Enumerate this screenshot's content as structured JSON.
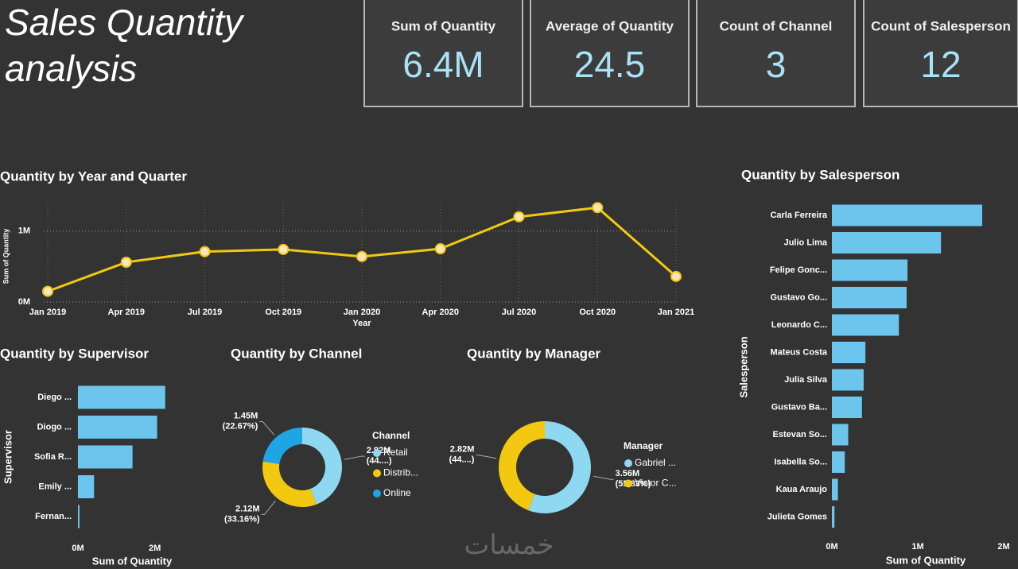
{
  "title": [
    "Sales Quantity",
    "analysis"
  ],
  "cards": [
    {
      "label": "Sum of Quantity",
      "value": "6.4M"
    },
    {
      "label": "Average of Quantity",
      "value": "24.5"
    },
    {
      "label": "Count of Channel",
      "value": "3"
    },
    {
      "label": "Count of Salesperson",
      "value": "12"
    }
  ],
  "chart_data": [
    {
      "type": "line",
      "title": "Quantity by Year and Quarter",
      "x_label": "Year",
      "y_label": "Sum of Quantity",
      "categories": [
        "Jan 2019",
        "Apr 2019",
        "Jul 2019",
        "Oct 2019",
        "Jan 2020",
        "Apr 2020",
        "Jul 2020",
        "Oct 2020",
        "Jan 2021"
      ],
      "values": [
        150000,
        560000,
        710000,
        740000,
        640000,
        750000,
        1200000,
        1330000,
        360000
      ],
      "color": "#f2c811",
      "ylim": [
        0,
        1400000
      ],
      "yticks": [
        {
          "value": 0,
          "label": "0M"
        },
        {
          "value": 1000000,
          "label": "1M"
        }
      ],
      "grid": true
    },
    {
      "type": "hbar",
      "title": "Quantity by Supervisor",
      "x_label": "Sum of Quantity",
      "y_label": "Supervisor",
      "categories": [
        "Diego ...",
        "Diogo ...",
        "Sofia R...",
        "Emily ...",
        "Fernan..."
      ],
      "values": [
        2270000,
        2060000,
        1420000,
        420000,
        40000
      ],
      "color": "#6cc5ec",
      "xlim": [
        0,
        2400000
      ],
      "xticks": [
        {
          "value": 0,
          "label": "0M"
        },
        {
          "value": 2000000,
          "label": "2M"
        }
      ]
    },
    {
      "type": "donut",
      "title": "Quantity by Channel",
      "legend_title": "Channel",
      "categories": [
        "Retail",
        "Distrib...",
        "Online"
      ],
      "values": [
        2820000,
        2120000,
        1450000
      ],
      "value_labels": [
        "2.82M",
        "2.12M",
        "1.45M"
      ],
      "percent_labels": [
        "(44....)",
        "(33.16%)",
        "(22.67%)"
      ],
      "colors": [
        "#8fd8f2",
        "#f2c811",
        "#1ea5e3"
      ]
    },
    {
      "type": "donut",
      "title": "Quantity by Manager",
      "legend_title": "Manager",
      "categories": [
        "Gabriel ...",
        "Victor C..."
      ],
      "values": [
        3560000,
        2820000
      ],
      "value_labels": [
        "3.56M",
        "2.82M"
      ],
      "percent_labels": [
        "(55.83%)",
        "(44....)"
      ],
      "colors": [
        "#8fd8f2",
        "#f2c811"
      ]
    },
    {
      "type": "hbar",
      "title": "Quantity by Salesperson",
      "x_label": "Sum of Quantity",
      "y_label": "Salesperson",
      "categories": [
        "Carla Ferreira",
        "Julio Lima",
        "Felipe Gonc...",
        "Gustavo Go...",
        "Leonardo C...",
        "Mateus Costa",
        "Julia Silva",
        "Gustavo Ba...",
        "Estevan So...",
        "Isabella So...",
        "Kaua Araujo",
        "Julieta Gomes"
      ],
      "values": [
        1750000,
        1270000,
        880000,
        870000,
        780000,
        390000,
        370000,
        350000,
        190000,
        150000,
        70000,
        30000
      ],
      "color": "#6cc5ec",
      "xlim": [
        0,
        2000000
      ],
      "xticks": [
        {
          "value": 0,
          "label": "0M"
        },
        {
          "value": 1000000,
          "label": "1M"
        },
        {
          "value": 2000000,
          "label": "2M"
        }
      ]
    }
  ],
  "watermark": "خمسات"
}
